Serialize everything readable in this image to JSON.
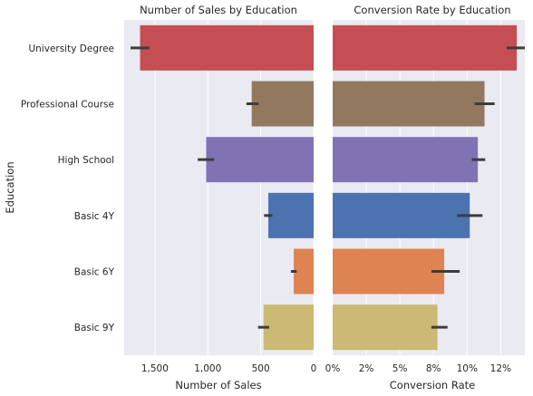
{
  "chart_data": [
    {
      "type": "bar",
      "orientation": "horizontal",
      "title": "Number of Sales by Education",
      "xlabel": "Number of Sales",
      "ylabel": "Education",
      "categories": [
        "University Degree",
        "Professional Course",
        "High School",
        "Basic 4Y",
        "Basic 6Y",
        "Basic 9Y"
      ],
      "values": [
        1640,
        585,
        1015,
        428,
        188,
        473
      ],
      "error_bars": [
        [
          1550,
          1730
        ],
        [
          520,
          635
        ],
        [
          940,
          1095
        ],
        [
          390,
          468
        ],
        [
          160,
          215
        ],
        [
          420,
          525
        ]
      ],
      "colors": [
        "#c44e52",
        "#937860",
        "#8172b3",
        "#4c72b0",
        "#dd8452",
        "#ccb974"
      ],
      "x_axis_inverted": true,
      "xlim": [
        1790,
        0
      ],
      "xticks": [
        1500,
        1000,
        500,
        0
      ],
      "xtick_labels": [
        "1,500",
        "1,000",
        "500",
        "0"
      ],
      "grid": true
    },
    {
      "type": "bar",
      "orientation": "horizontal",
      "title": "Conversion Rate by Education",
      "xlabel": "Conversion Rate",
      "ylabel": "",
      "categories": [
        "University Degree",
        "Professional Course",
        "High School",
        "Basic 4Y",
        "Basic 6Y",
        "Basic 9Y"
      ],
      "values": [
        0.137,
        0.113,
        0.108,
        0.102,
        0.083,
        0.078
      ],
      "error_bars": [
        [
          0.1295,
          0.143
        ],
        [
          0.1055,
          0.1205
        ],
        [
          0.1035,
          0.1135
        ],
        [
          0.0925,
          0.1115
        ],
        [
          0.0735,
          0.0945
        ],
        [
          0.0735,
          0.0855
        ]
      ],
      "colors": [
        "#c44e52",
        "#937860",
        "#8172b3",
        "#4c72b0",
        "#dd8452",
        "#ccb974"
      ],
      "xlim": [
        0,
        0.143
      ],
      "xticks": [
        0,
        0.025,
        0.05,
        0.075,
        0.1,
        0.125
      ],
      "xtick_labels": [
        "0%",
        "2%",
        "5%",
        "8%",
        "10%",
        "12%"
      ],
      "grid": true
    }
  ]
}
